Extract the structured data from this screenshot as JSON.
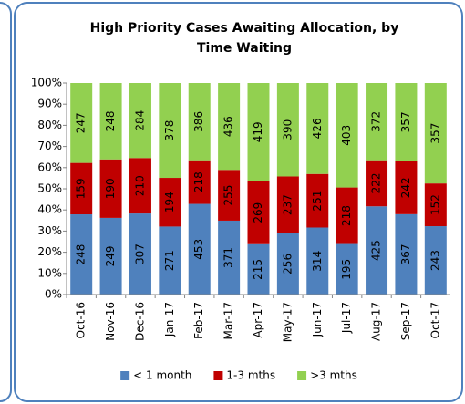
{
  "chart_data": {
    "type": "bar",
    "stacked": "percent",
    "title": "High Priority Cases Awaiting Allocation, by",
    "subtitle": "Time Waiting",
    "categories": [
      "Oct-16",
      "Nov-16",
      "Dec-16",
      "Jan-17",
      "Feb-17",
      "Mar-17",
      "Apr-17",
      "May-17",
      "Jun-17",
      "Jul-17",
      "Aug-17",
      "Sep-17",
      "Oct-17"
    ],
    "series": [
      {
        "name": "< 1 month",
        "color": "#4f81bd",
        "values": [
          248,
          249,
          307,
          271,
          453,
          371,
          215,
          256,
          314,
          195,
          425,
          367,
          243
        ]
      },
      {
        "name": "1-3 mths",
        "color": "#c00000",
        "values": [
          159,
          190,
          210,
          194,
          218,
          255,
          269,
          237,
          251,
          218,
          222,
          242,
          152
        ]
      },
      {
        "name": ">3 mths",
        "color": "#92d050",
        "values": [
          247,
          248,
          284,
          378,
          386,
          436,
          419,
          390,
          426,
          403,
          372,
          357,
          357
        ]
      }
    ],
    "ylim": [
      0,
      100
    ],
    "yticks": [
      {
        "value": 0,
        "label": "0%"
      },
      {
        "value": 10,
        "label": "10%"
      },
      {
        "value": 20,
        "label": "20%"
      },
      {
        "value": 30,
        "label": "30%"
      },
      {
        "value": 40,
        "label": "40%"
      },
      {
        "value": 50,
        "label": "50%"
      },
      {
        "value": 60,
        "label": "60%"
      },
      {
        "value": 70,
        "label": "70%"
      },
      {
        "value": 80,
        "label": "80%"
      },
      {
        "value": 90,
        "label": "90%"
      },
      {
        "value": 100,
        "label": "100%"
      }
    ],
    "legend": "bottom"
  }
}
